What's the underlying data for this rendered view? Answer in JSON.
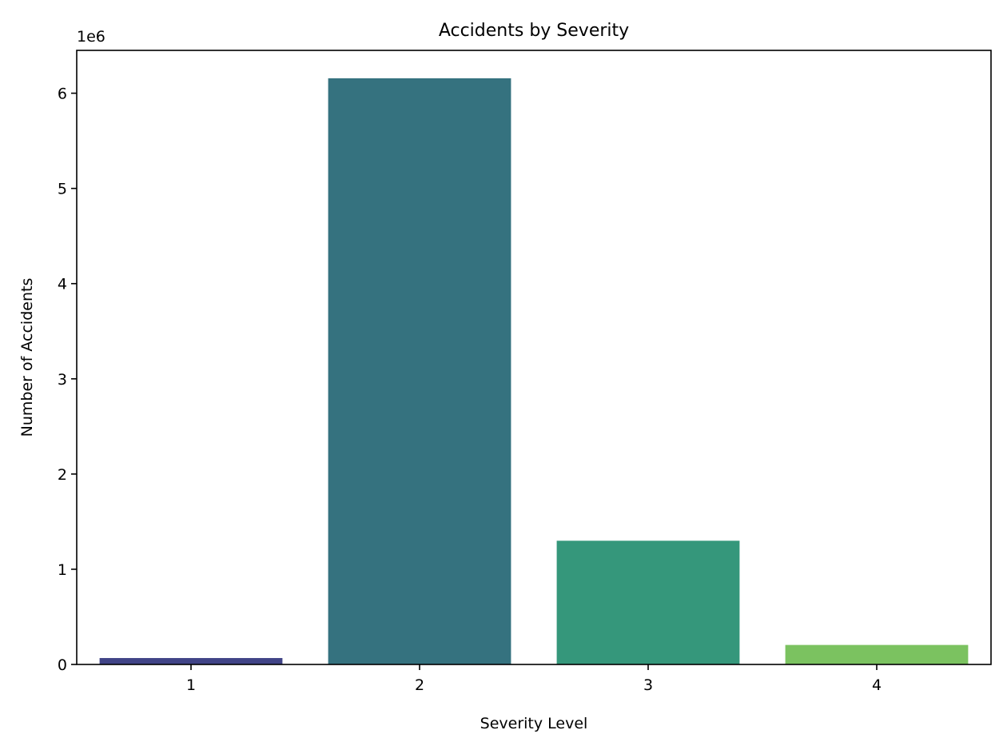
{
  "chart_data": {
    "type": "bar",
    "title": "Accidents by Severity",
    "xlabel": "Severity Level",
    "ylabel": "Number of Accidents",
    "y_offset_label": "1e6",
    "categories": [
      "1",
      "2",
      "3",
      "4"
    ],
    "values": [
      67366,
      6156981,
      1299337,
      204710
    ],
    "ylim": [
      0,
      6450000
    ],
    "yticks": [
      0,
      1000000,
      2000000,
      3000000,
      4000000,
      5000000,
      6000000
    ],
    "ytick_labels": [
      "0",
      "1",
      "2",
      "3",
      "4",
      "5",
      "6"
    ],
    "colors": [
      "#414487",
      "#35727F",
      "#35977B",
      "#7BC260"
    ],
    "grid": false,
    "legend": "none"
  }
}
